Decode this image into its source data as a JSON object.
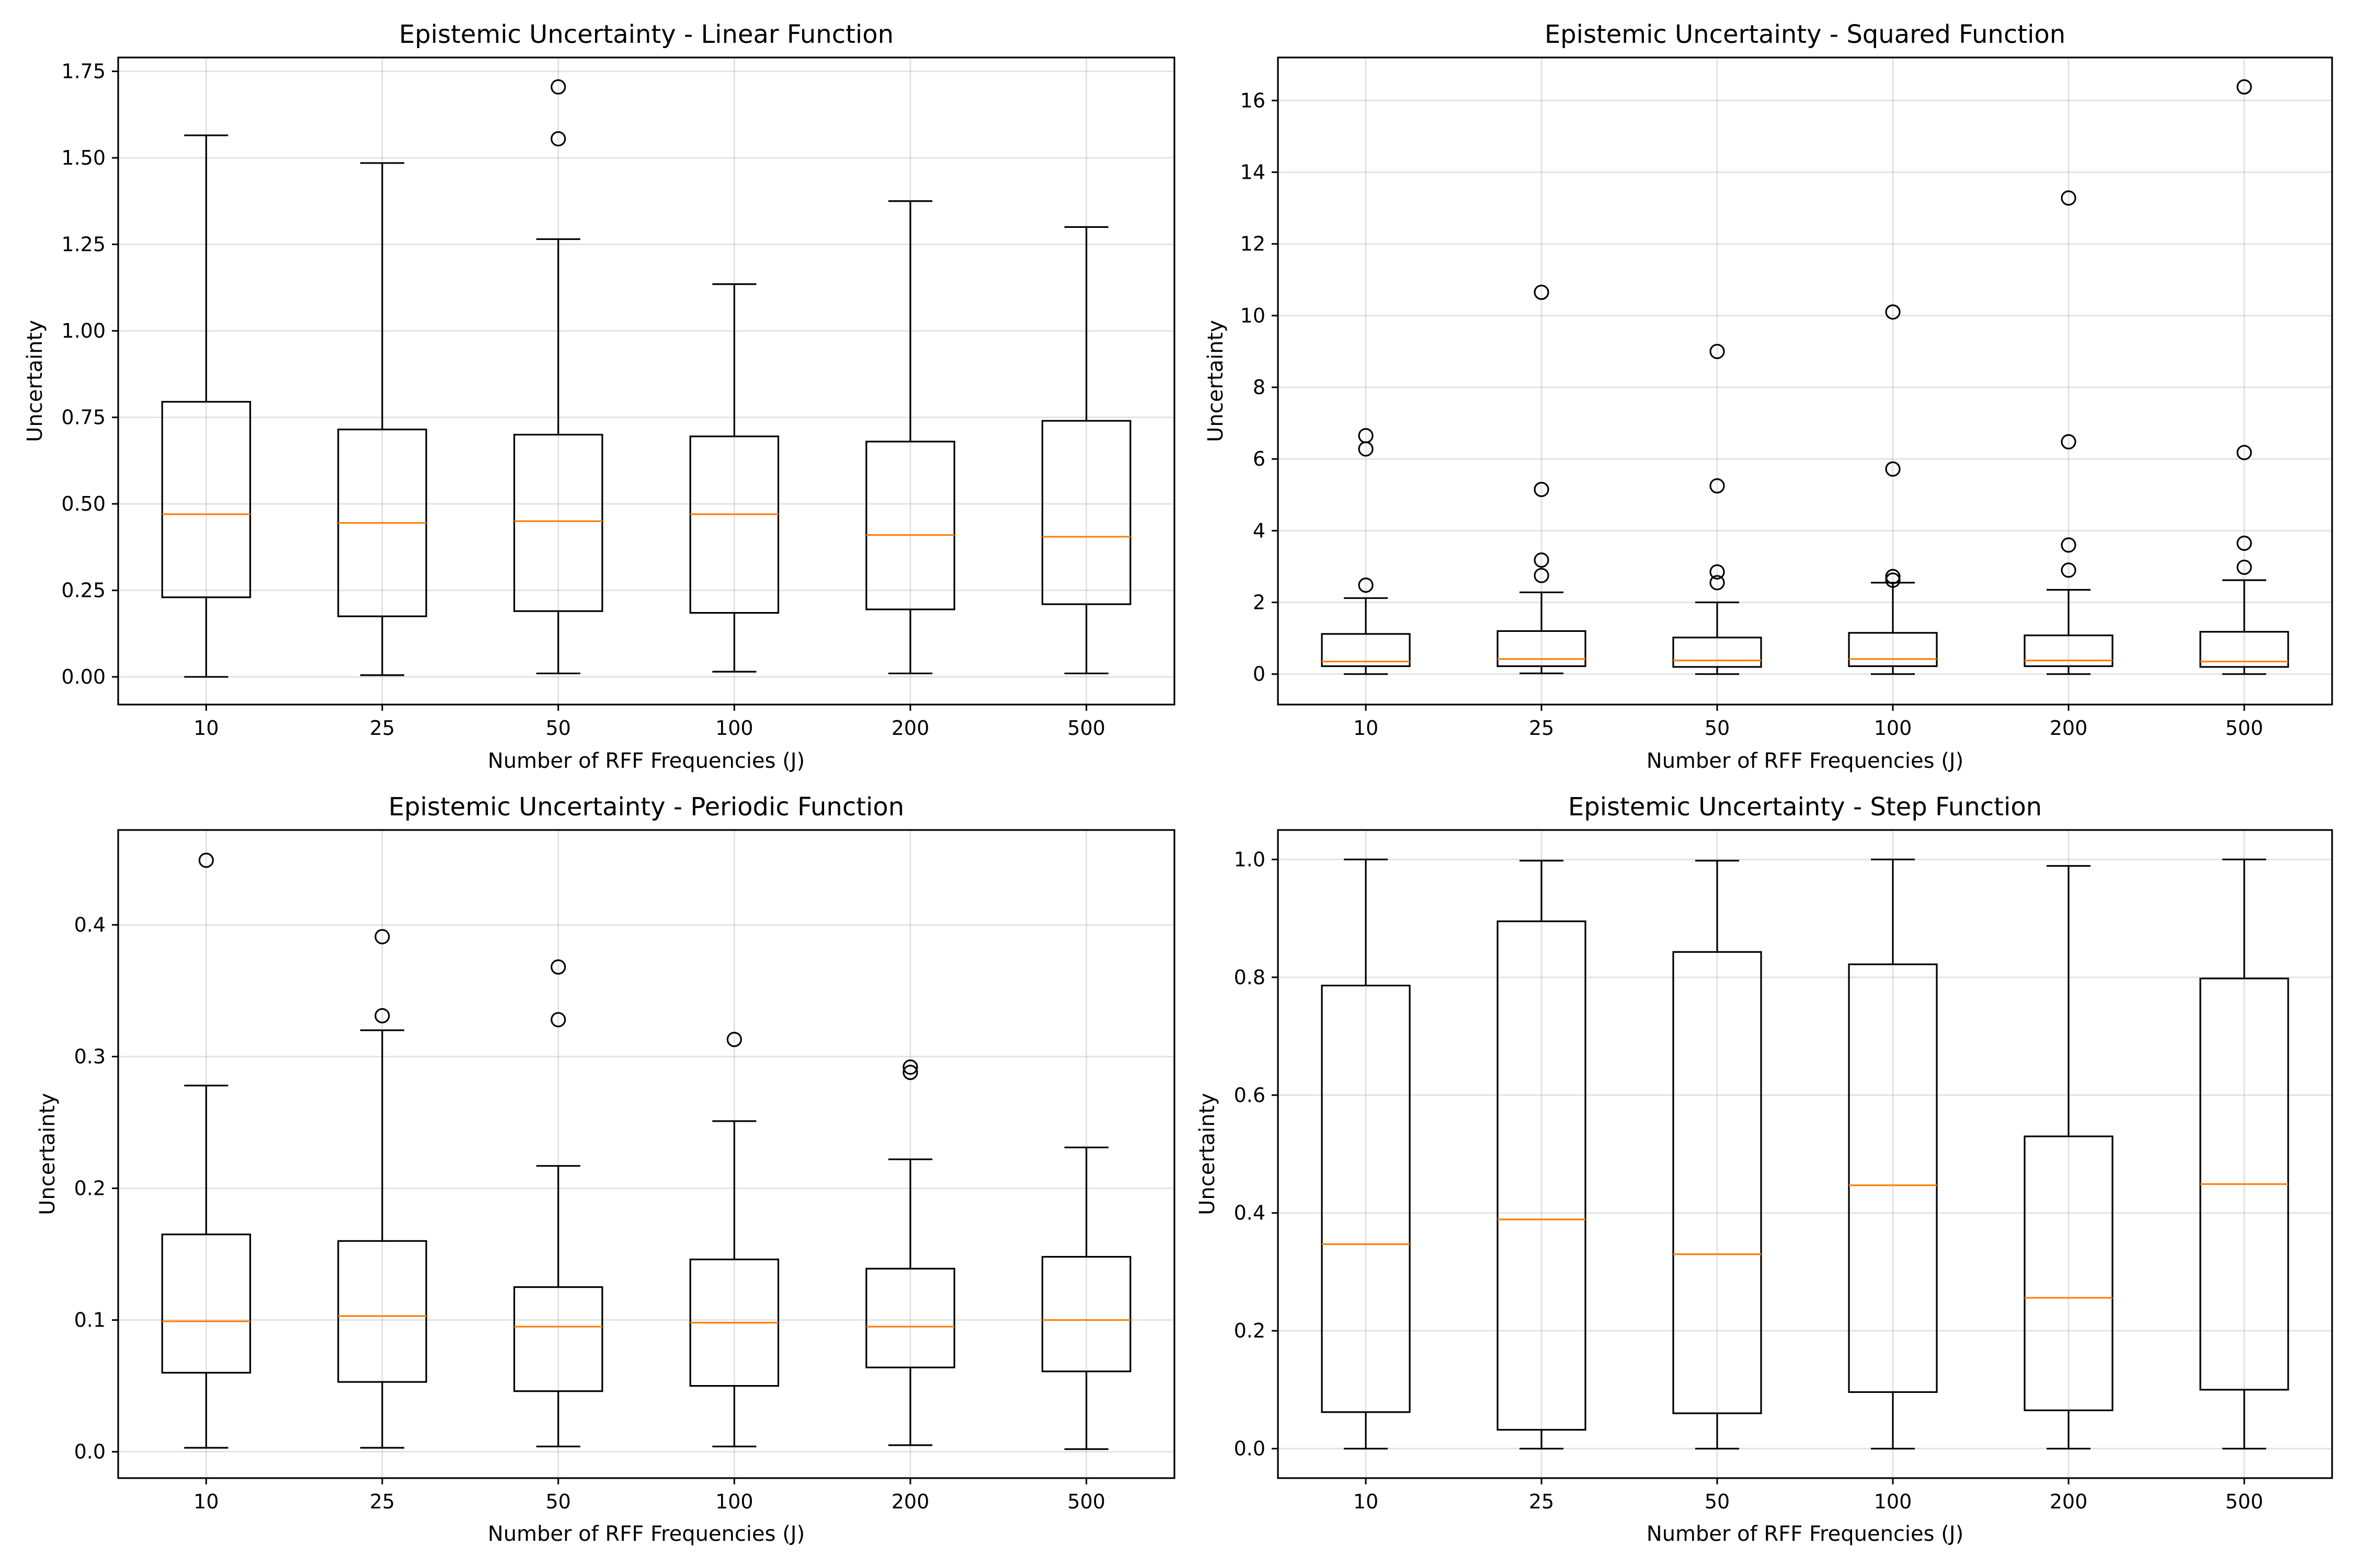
{
  "chart_data": [
    {
      "type": "box",
      "title": "Epistemic Uncertainty - Linear Function",
      "xlabel": "Number of RFF Frequencies (J)",
      "ylabel": "Uncertainty",
      "categories": [
        "10",
        "25",
        "50",
        "100",
        "200",
        "500"
      ],
      "ylim": [
        -0.08,
        1.79
      ],
      "yticks": [
        0.0,
        0.25,
        0.5,
        0.75,
        1.0,
        1.25,
        1.5,
        1.75
      ],
      "ytick_labels": [
        "0.00",
        "0.25",
        "0.50",
        "0.75",
        "1.00",
        "1.25",
        "1.50",
        "1.75"
      ],
      "grid": true,
      "boxes": [
        {
          "whisker_low": 0.0,
          "q1": 0.23,
          "median": 0.47,
          "q3": 0.795,
          "whisker_high": 1.565,
          "outliers": []
        },
        {
          "whisker_low": 0.005,
          "q1": 0.175,
          "median": 0.445,
          "q3": 0.715,
          "whisker_high": 1.485,
          "outliers": []
        },
        {
          "whisker_low": 0.01,
          "q1": 0.19,
          "median": 0.45,
          "q3": 0.7,
          "whisker_high": 1.265,
          "outliers": [
            1.555,
            1.705
          ]
        },
        {
          "whisker_low": 0.015,
          "q1": 0.185,
          "median": 0.47,
          "q3": 0.695,
          "whisker_high": 1.135,
          "outliers": []
        },
        {
          "whisker_low": 0.01,
          "q1": 0.195,
          "median": 0.41,
          "q3": 0.68,
          "whisker_high": 1.375,
          "outliers": []
        },
        {
          "whisker_low": 0.01,
          "q1": 0.21,
          "median": 0.405,
          "q3": 0.74,
          "whisker_high": 1.3,
          "outliers": []
        }
      ]
    },
    {
      "type": "box",
      "title": "Epistemic Uncertainty - Squared Function",
      "xlabel": "Number of RFF Frequencies (J)",
      "ylabel": "Uncertainty",
      "categories": [
        "10",
        "25",
        "50",
        "100",
        "200",
        "500"
      ],
      "ylim": [
        -0.85,
        17.2
      ],
      "yticks": [
        0,
        2,
        4,
        6,
        8,
        10,
        12,
        14,
        16
      ],
      "ytick_labels": [
        "0",
        "2",
        "4",
        "6",
        "8",
        "10",
        "12",
        "14",
        "16"
      ],
      "grid": true,
      "boxes": [
        {
          "whisker_low": 0.0,
          "q1": 0.22,
          "median": 0.35,
          "q3": 1.12,
          "whisker_high": 2.12,
          "outliers": [
            2.48,
            6.28,
            6.65
          ]
        },
        {
          "whisker_low": 0.02,
          "q1": 0.22,
          "median": 0.42,
          "q3": 1.2,
          "whisker_high": 2.28,
          "outliers": [
            2.75,
            3.18,
            5.15,
            10.65
          ]
        },
        {
          "whisker_low": 0.0,
          "q1": 0.2,
          "median": 0.38,
          "q3": 1.02,
          "whisker_high": 2.0,
          "outliers": [
            2.55,
            2.85,
            5.25,
            9.0
          ]
        },
        {
          "whisker_low": 0.0,
          "q1": 0.22,
          "median": 0.42,
          "q3": 1.15,
          "whisker_high": 2.55,
          "outliers": [
            2.62,
            2.72,
            5.72,
            10.1
          ]
        },
        {
          "whisker_low": 0.0,
          "q1": 0.22,
          "median": 0.38,
          "q3": 1.08,
          "whisker_high": 2.35,
          "outliers": [
            2.9,
            3.6,
            6.48,
            13.28
          ]
        },
        {
          "whisker_low": 0.0,
          "q1": 0.2,
          "median": 0.35,
          "q3": 1.18,
          "whisker_high": 2.62,
          "outliers": [
            2.98,
            3.65,
            6.18,
            16.38
          ]
        }
      ]
    },
    {
      "type": "box",
      "title": "Epistemic Uncertainty - Periodic Function",
      "xlabel": "Number of RFF Frequencies (J)",
      "ylabel": "Uncertainty",
      "categories": [
        "10",
        "25",
        "50",
        "100",
        "200",
        "500"
      ],
      "ylim": [
        -0.02,
        0.472
      ],
      "yticks": [
        0.0,
        0.1,
        0.2,
        0.3,
        0.4
      ],
      "ytick_labels": [
        "0.0",
        "0.1",
        "0.2",
        "0.3",
        "0.4"
      ],
      "grid": true,
      "boxes": [
        {
          "whisker_low": 0.003,
          "q1": 0.06,
          "median": 0.099,
          "q3": 0.165,
          "whisker_high": 0.278,
          "outliers": [
            0.449
          ]
        },
        {
          "whisker_low": 0.003,
          "q1": 0.053,
          "median": 0.103,
          "q3": 0.16,
          "whisker_high": 0.32,
          "outliers": [
            0.331,
            0.391
          ]
        },
        {
          "whisker_low": 0.004,
          "q1": 0.046,
          "median": 0.095,
          "q3": 0.125,
          "whisker_high": 0.217,
          "outliers": [
            0.328,
            0.368
          ]
        },
        {
          "whisker_low": 0.004,
          "q1": 0.05,
          "median": 0.098,
          "q3": 0.146,
          "whisker_high": 0.251,
          "outliers": [
            0.313
          ]
        },
        {
          "whisker_low": 0.005,
          "q1": 0.064,
          "median": 0.095,
          "q3": 0.139,
          "whisker_high": 0.222,
          "outliers": [
            0.288,
            0.292
          ]
        },
        {
          "whisker_low": 0.002,
          "q1": 0.061,
          "median": 0.1,
          "q3": 0.148,
          "whisker_high": 0.231,
          "outliers": []
        }
      ]
    },
    {
      "type": "box",
      "title": "Epistemic Uncertainty - Step Function",
      "xlabel": "Number of RFF Frequencies (J)",
      "ylabel": "Uncertainty",
      "categories": [
        "10",
        "25",
        "50",
        "100",
        "200",
        "500"
      ],
      "ylim": [
        -0.05,
        1.05
      ],
      "yticks": [
        0.0,
        0.2,
        0.4,
        0.6,
        0.8,
        1.0
      ],
      "ytick_labels": [
        "0.0",
        "0.2",
        "0.4",
        "0.6",
        "0.8",
        "1.0"
      ],
      "grid": true,
      "boxes": [
        {
          "whisker_low": 0.0,
          "q1": 0.062,
          "median": 0.347,
          "q3": 0.786,
          "whisker_high": 1.0,
          "outliers": []
        },
        {
          "whisker_low": 0.0,
          "q1": 0.032,
          "median": 0.389,
          "q3": 0.895,
          "whisker_high": 0.998,
          "outliers": []
        },
        {
          "whisker_low": 0.0,
          "q1": 0.06,
          "median": 0.33,
          "q3": 0.843,
          "whisker_high": 0.998,
          "outliers": []
        },
        {
          "whisker_low": 0.0,
          "q1": 0.096,
          "median": 0.447,
          "q3": 0.822,
          "whisker_high": 1.0,
          "outliers": []
        },
        {
          "whisker_low": 0.0,
          "q1": 0.065,
          "median": 0.256,
          "q3": 0.53,
          "whisker_high": 0.989,
          "outliers": []
        },
        {
          "whisker_low": 0.0,
          "q1": 0.1,
          "median": 0.449,
          "q3": 0.798,
          "whisker_high": 1.0,
          "outliers": []
        }
      ]
    }
  ],
  "colors": {
    "median": "#ff7f0e",
    "box": "#000000",
    "grid": "#b0b0b0",
    "background": "#ffffff"
  }
}
